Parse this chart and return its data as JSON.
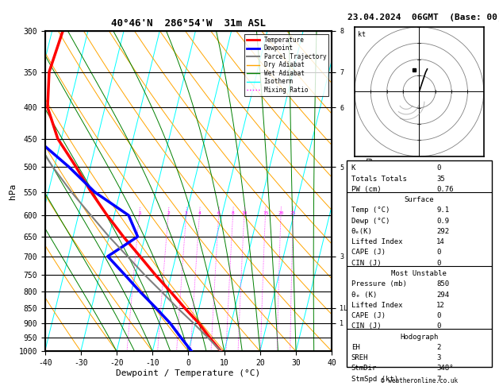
{
  "title": "40°46'N  286°54'W  31m ASL",
  "date_title": "23.04.2024  06GMT  (Base: 00)",
  "xlabel": "Dewpoint / Temperature (°C)",
  "ylabel_left": "hPa",
  "pressure_levels": [
    300,
    350,
    400,
    450,
    500,
    550,
    600,
    650,
    700,
    750,
    800,
    850,
    900,
    950,
    1000
  ],
  "temp_profile": {
    "pressure": [
      1000,
      950,
      900,
      850,
      800,
      750,
      700,
      650,
      600,
      550,
      500,
      450,
      400,
      350,
      300
    ],
    "temp": [
      9.1,
      5.0,
      1.0,
      -4.0,
      -9.0,
      -14.5,
      -20.0,
      -26.0,
      -32.0,
      -38.0,
      -44.0,
      -51.0,
      -56.0,
      -58.0,
      -57.0
    ],
    "color": "red",
    "linewidth": 2.5
  },
  "dewp_profile": {
    "pressure": [
      1000,
      950,
      900,
      850,
      800,
      750,
      700,
      650,
      600,
      550,
      500,
      450,
      400,
      350,
      300
    ],
    "temp": [
      0.9,
      -3.0,
      -7.0,
      -12.0,
      -17.5,
      -23.0,
      -29.0,
      -22.0,
      -26.0,
      -37.0,
      -46.0,
      -57.0,
      -62.0,
      -66.0,
      -72.0
    ],
    "color": "blue",
    "linewidth": 2.5
  },
  "parcel_profile": {
    "pressure": [
      1000,
      950,
      900,
      850,
      800,
      750,
      700,
      650,
      600,
      550,
      500,
      450,
      400,
      350,
      300
    ],
    "temp": [
      9.1,
      4.5,
      -0.5,
      -6.0,
      -11.5,
      -17.5,
      -23.5,
      -30.0,
      -36.5,
      -43.5,
      -50.5,
      -57.5,
      -62.0,
      -64.0,
      -63.0
    ],
    "color": "gray",
    "linewidth": 1.5
  },
  "mixing_ratio_values": [
    1,
    2,
    3,
    4,
    6,
    8,
    10,
    15,
    20,
    25
  ],
  "stats": {
    "K": 0,
    "Totals_Totals": 35,
    "PW_cm": 0.76,
    "Surface": {
      "Temp_C": 9.1,
      "Dewp_C": 0.9,
      "theta_e_K": 292,
      "Lifted_Index": 14,
      "CAPE_J": 0,
      "CIN_J": 0
    },
    "Most_Unstable": {
      "Pressure_mb": 850,
      "theta_e_K": 294,
      "Lifted_Index": 12,
      "CAPE_J": 0,
      "CIN_J": 0
    },
    "Hodograph": {
      "EH": 2,
      "SREH": 3,
      "StmDir": 348,
      "StmSpd_kt": 7
    }
  }
}
